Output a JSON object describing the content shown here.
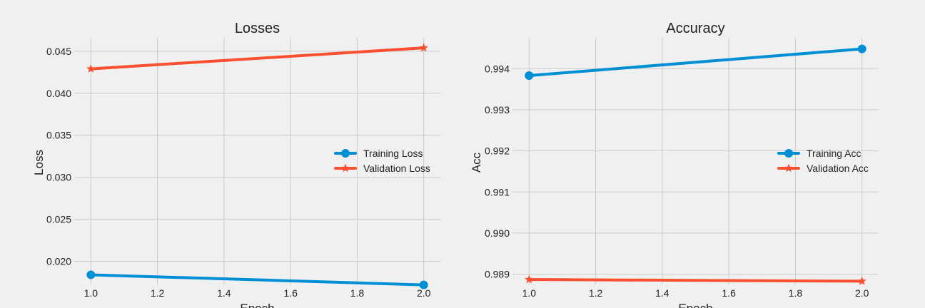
{
  "colors": {
    "training": "#008fd5",
    "validation": "#fc4f30",
    "grid": "#cbcbcb",
    "background": "#f0f0f0"
  },
  "chart_data": [
    {
      "type": "line",
      "title": "Losses",
      "xlabel": "Epoch",
      "ylabel": "Loss",
      "x": [
        1.0,
        2.0
      ],
      "xlim": [
        0.95,
        2.05
      ],
      "ylim": [
        0.01725,
        0.0466
      ],
      "xticks": [
        "1.0",
        "1.2",
        "1.4",
        "1.6",
        "1.8",
        "2.0"
      ],
      "yticks": [
        "0.020",
        "0.025",
        "0.030",
        "0.035",
        "0.040",
        "0.045"
      ],
      "grid": true,
      "legend_position": "center-right",
      "series": [
        {
          "name": "Training Loss",
          "values": [
            0.0184,
            0.0172
          ],
          "marker": "circle",
          "color_key": "training"
        },
        {
          "name": "Validation Loss",
          "values": [
            0.0429,
            0.0454
          ],
          "marker": "star",
          "color_key": "validation"
        }
      ]
    },
    {
      "type": "line",
      "title": "Accuracy",
      "xlabel": "Epoch",
      "ylabel": "Acc",
      "x": [
        1.0,
        2.0
      ],
      "xlim": [
        0.95,
        2.05
      ],
      "ylim": [
        0.98875,
        0.99475
      ],
      "xticks": [
        "1.0",
        "1.2",
        "1.4",
        "1.6",
        "1.8",
        "2.0"
      ],
      "yticks": [
        "0.989",
        "0.990",
        "0.991",
        "0.992",
        "0.993",
        "0.994"
      ],
      "grid": true,
      "legend_position": "center-right",
      "series": [
        {
          "name": "Training Acc",
          "values": [
            0.99383,
            0.99448
          ],
          "marker": "circle",
          "color_key": "training"
        },
        {
          "name": "Validation Acc",
          "values": [
            0.98887,
            0.98883
          ],
          "marker": "star",
          "color_key": "validation"
        }
      ]
    }
  ]
}
